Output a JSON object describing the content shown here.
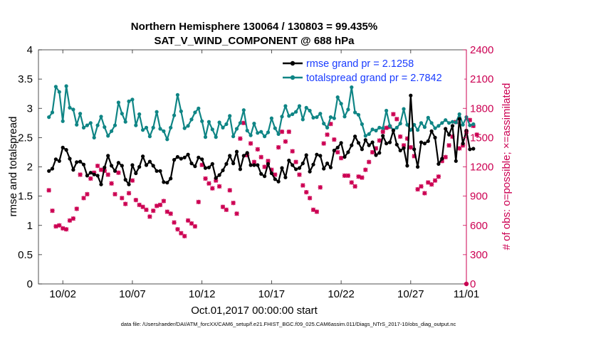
{
  "chart_data": {
    "type": "line",
    "title": "Northern Hemisphere 130064 / 130803 = 99.435%",
    "subtitle": "SAT_V_WIND_COMPONENT @ 688 hPa",
    "xlabel": "Oct.01,2017 00:00:00 start",
    "ylabel": "rmse and totalspread",
    "ylabel_right": "# of obs: o=possible; ×=assimilated",
    "footer": "data file: /Users/raeder/DAI/ATM_forcXX/CAM6_setup/f.e21.FHIST_BGC.f09_025.CAM6assim.011/Diags_NTrS_2017-10/obs_diag_output.nc",
    "xlim": [
      0.25,
      31
    ],
    "ylim": [
      0,
      4
    ],
    "ylim_right": [
      0,
      2400
    ],
    "x_ticks": [
      {
        "v": 2,
        "label": "10/02"
      },
      {
        "v": 7,
        "label": "10/07"
      },
      {
        "v": 12,
        "label": "10/12"
      },
      {
        "v": 17,
        "label": "10/17"
      },
      {
        "v": 22,
        "label": "10/22"
      },
      {
        "v": 27,
        "label": "10/27"
      },
      {
        "v": 31,
        "label": "11/01"
      }
    ],
    "y_ticks": [
      "0",
      "0.5",
      "1",
      "1.5",
      "2",
      "2.5",
      "3",
      "3.5",
      "4"
    ],
    "y_ticks_right": [
      "0",
      "300",
      "600",
      "900",
      "1200",
      "1500",
      "1800",
      "2100",
      "2400"
    ],
    "legend": [
      {
        "name": "rmse grand pr = 2.1258",
        "color": "#000000"
      },
      {
        "name": "totalspread grand pr = 2.7842",
        "color": "#0f8585"
      }
    ],
    "series": [
      {
        "name": "rmse",
        "color": "#000000",
        "values": [
          1.93,
          1.97,
          2.13,
          2.1,
          2.33,
          2.29,
          2.14,
          1.95,
          2.08,
          2.09,
          2.04,
          1.85,
          1.9,
          1.87,
          1.85,
          1.7,
          1.99,
          2.19,
          2.02,
          1.93,
          2.07,
          2.02,
          1.78,
          1.7,
          2.03,
          1.89,
          2.0,
          2.18,
          2.03,
          2.09,
          2.02,
          1.93,
          1.93,
          1.74,
          1.73,
          1.8,
          2.12,
          2.17,
          2.14,
          2.16,
          2.21,
          2.06,
          2.01,
          2.16,
          2.13,
          1.98,
          1.99,
          2.05,
          1.81,
          1.86,
          1.94,
          2.05,
          2.19,
          2.06,
          2.26,
          1.96,
          2.19,
          2.24,
          2.03,
          2.03,
          2.03,
          1.88,
          1.84,
          2.05,
          1.89,
          1.79,
          1.75,
          1.98,
          1.82,
          2.11,
          2.03,
          1.96,
          1.98,
          2.06,
          2.2,
          1.92,
          2.04,
          2.21,
          2.19,
          1.97,
          2.06,
          1.99,
          2.28,
          2.33,
          2.41,
          2.17,
          2.25,
          2.37,
          2.52,
          2.41,
          2.3,
          2.46,
          2.37,
          2.42,
          2.2,
          2.24,
          2.53,
          2.4,
          2.42,
          2.62,
          2.38,
          2.28,
          2.32,
          2.02,
          3.22,
          2.3,
          2.0,
          2.42,
          2.4,
          2.44,
          2.61,
          2.5,
          2.05,
          2.14,
          2.65,
          2.55,
          2.7,
          2.1,
          2.82,
          2.4,
          2.62,
          2.3,
          2.31
        ]
      },
      {
        "name": "totalspread",
        "color": "#0f8585",
        "values": [
          2.85,
          2.93,
          3.37,
          3.28,
          2.78,
          3.38,
          3.01,
          2.98,
          2.72,
          2.91,
          2.67,
          2.71,
          2.75,
          2.5,
          2.71,
          2.86,
          2.68,
          2.53,
          2.61,
          2.71,
          3.1,
          2.91,
          2.77,
          3.12,
          3.15,
          2.71,
          2.9,
          2.63,
          2.67,
          2.52,
          2.67,
          2.94,
          2.65,
          2.61,
          2.47,
          2.67,
          2.88,
          3.23,
          2.95,
          2.66,
          2.7,
          2.81,
          2.93,
          3.0,
          2.78,
          2.51,
          2.77,
          2.64,
          2.51,
          2.76,
          2.67,
          2.73,
          2.87,
          2.52,
          2.65,
          2.75,
          2.97,
          2.62,
          2.54,
          2.74,
          2.58,
          2.6,
          2.52,
          2.59,
          2.83,
          2.66,
          2.56,
          2.86,
          3.04,
          2.87,
          2.9,
          2.94,
          3.04,
          2.81,
          3.01,
          2.96,
          2.84,
          2.85,
          2.91,
          2.74,
          2.67,
          2.85,
          2.83,
          3.19,
          3.08,
          2.86,
          2.98,
          3.36,
          2.93,
          2.89,
          2.73,
          2.53,
          2.56,
          2.64,
          2.62,
          2.67,
          2.66,
          2.96,
          2.7,
          2.63,
          2.67,
          2.74,
          2.99,
          2.72,
          2.63,
          2.72,
          2.63,
          2.75,
          2.68,
          2.84,
          2.75,
          2.66,
          2.7,
          2.75,
          2.8,
          2.75,
          2.77,
          2.76,
          2.9,
          2.72,
          2.85,
          2.71,
          2.73
        ]
      },
      {
        "name": "obs assimilated",
        "axis": "right",
        "color": "#cc0052",
        "values": [
          960,
          750,
          590,
          600,
          570,
          560,
          650,
          670,
          770,
          1120,
          880,
          920,
          1080,
          1140,
          1210,
          1170,
          1160,
          1120,
          1030,
          920,
          1140,
          880,
          820,
          930,
          1060,
          860,
          810,
          790,
          760,
          690,
          750,
          800,
          810,
          850,
          740,
          720,
          630,
          560,
          520,
          490,
          650,
          620,
          590,
          840,
          1220,
          1080,
          1030,
          980,
          1060,
          1000,
          790,
          760,
          960,
          830,
          720,
          1490,
          1650,
          1320,
          1440,
          1250,
          1380,
          1300,
          1200,
          1260,
          1170,
          1120,
          1400,
          1560,
          1460,
          1560,
          1360,
          1250,
          1120,
          1010,
          940,
          880,
          760,
          740,
          990,
          1440,
          1530,
          1640,
          1480,
          1350,
          1290,
          1110,
          1110,
          1040,
          1000,
          1100,
          1090,
          1170,
          1250,
          1350,
          1390,
          1470,
          1560,
          1600,
          1610,
          1740,
          1690,
          1510,
          1420,
          1490,
          1400,
          1310,
          970,
          1000,
          930,
          1040,
          1020,
          1060,
          1100,
          1260,
          1300,
          1420,
          1510,
          1660,
          1390,
          1420,
          1560,
          1680,
          1620,
          1530
        ]
      }
    ]
  }
}
